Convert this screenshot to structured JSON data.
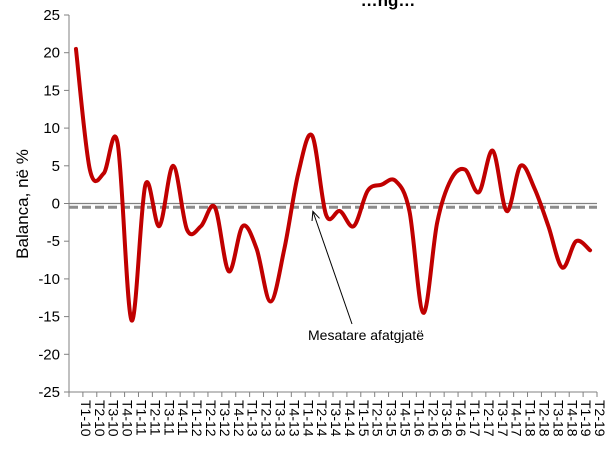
{
  "colors": {
    "series": "#C00000",
    "average_line": "#8C8C8C",
    "zero_line": "#808080",
    "axis": "#808080",
    "background": "#FFFFFF"
  },
  "chart_data": {
    "type": "line",
    "title": "…ng…",
    "xlabel": "",
    "ylabel": "Balanca, në %",
    "ylim": [
      -25,
      25
    ],
    "yticks": [
      25,
      20,
      15,
      10,
      5,
      0,
      -5,
      -10,
      -15,
      -20,
      -25
    ],
    "grid": false,
    "legend": "none",
    "smooth": true,
    "categories": [
      "T1-10",
      "T2-10",
      "T3-10",
      "T4-10",
      "T1-11",
      "T2-11",
      "T3-11",
      "T4-11",
      "T1-12",
      "T2-12",
      "T3-12",
      "T4-12",
      "T1-13",
      "T2-13",
      "T3-13",
      "T4-13",
      "T1-14",
      "T2-14",
      "T3-14",
      "T4-14",
      "T1-15",
      "T2-15",
      "T3-15",
      "T4-15",
      "T1-16",
      "T2-16",
      "T3-16",
      "T4-16",
      "T1-17",
      "T2-17",
      "T3-17",
      "T4-17",
      "T1-18",
      "T2-18",
      "T3-18",
      "T4-18",
      "T1-19",
      "T2-19"
    ],
    "series": [
      {
        "values": [
          20.5,
          4.5,
          4.0,
          8.0,
          -15.5,
          2.5,
          -3.0,
          5.0,
          -3.5,
          -3.0,
          -0.5,
          -9.0,
          -3.0,
          -6.0,
          -13.0,
          -6.0,
          4.0,
          9.0,
          -1.5,
          -1.0,
          -3.0,
          1.7,
          2.5,
          3.0,
          -1.0,
          -14.5,
          -2.5,
          3.2,
          4.5,
          1.5,
          7.0,
          -1.0,
          5.0,
          2.0,
          -3.0,
          -8.5,
          -5.0,
          -6.2
        ]
      }
    ],
    "reference_lines": [
      {
        "label": "Mesatare afatgjatë",
        "value": -0.5,
        "style": "dashed"
      }
    ],
    "annotations": [
      {
        "text": "Mesatare afatgjatë",
        "points_to": {
          "x": "T2-14",
          "y": -0.5
        }
      }
    ]
  }
}
